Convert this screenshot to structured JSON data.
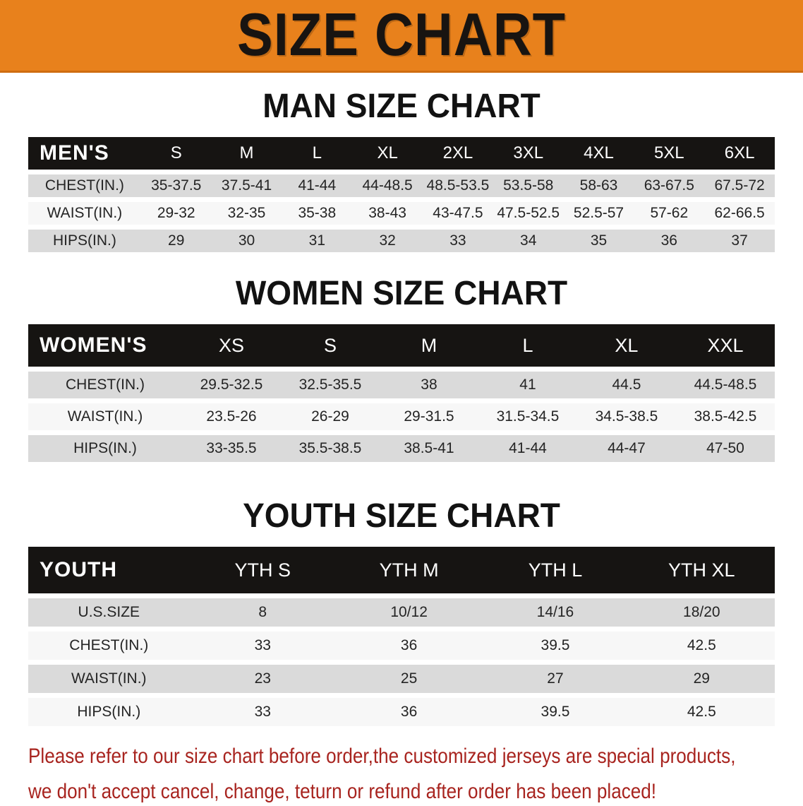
{
  "banner": {
    "title": "SIZE CHART",
    "bg_color": "#e8811c",
    "text_color": "#181411"
  },
  "sections": [
    {
      "key": "men",
      "heading": "MAN SIZE CHART",
      "label": "MEN'S",
      "columns": [
        "S",
        "M",
        "L",
        "XL",
        "2XL",
        "3XL",
        "4XL",
        "5XL",
        "6XL"
      ],
      "rows": [
        {
          "label": "CHEST(IN.)",
          "values": [
            "35-37.5",
            "37.5-41",
            "41-44",
            "44-48.5",
            "48.5-53.5",
            "53.5-58",
            "58-63",
            "63-67.5",
            "67.5-72"
          ]
        },
        {
          "label": "WAIST(IN.)",
          "values": [
            "29-32",
            "32-35",
            "35-38",
            "38-43",
            "43-47.5",
            "47.5-52.5",
            "52.5-57",
            "57-62",
            "62-66.5"
          ]
        },
        {
          "label": "HIPS(IN.)",
          "values": [
            "29",
            "30",
            "31",
            "32",
            "33",
            "34",
            "35",
            "36",
            "37"
          ]
        }
      ]
    },
    {
      "key": "women",
      "heading": "WOMEN SIZE CHART",
      "label": "WOMEN'S",
      "columns": [
        "XS",
        "S",
        "M",
        "L",
        "XL",
        "XXL"
      ],
      "rows": [
        {
          "label": "CHEST(IN.)",
          "values": [
            "29.5-32.5",
            "32.5-35.5",
            "38",
            "41",
            "44.5",
            "44.5-48.5"
          ]
        },
        {
          "label": "WAIST(IN.)",
          "values": [
            "23.5-26",
            "26-29",
            "29-31.5",
            "31.5-34.5",
            "34.5-38.5",
            "38.5-42.5"
          ]
        },
        {
          "label": "HIPS(IN.)",
          "values": [
            "33-35.5",
            "35.5-38.5",
            "38.5-41",
            "41-44",
            "44-47",
            "47-50"
          ]
        }
      ]
    },
    {
      "key": "youth",
      "heading": "YOUTH SIZE CHART",
      "label": "YOUTH",
      "columns": [
        "YTH S",
        "YTH M",
        "YTH L",
        "YTH XL"
      ],
      "rows": [
        {
          "label": "U.S.SIZE",
          "values": [
            "8",
            "10/12",
            "14/16",
            "18/20"
          ]
        },
        {
          "label": "CHEST(IN.)",
          "values": [
            "33",
            "36",
            "39.5",
            "42.5"
          ]
        },
        {
          "label": "WAIST(IN.)",
          "values": [
            "23",
            "25",
            "27",
            "29"
          ]
        },
        {
          "label": "HIPS(IN.)",
          "values": [
            "33",
            "36",
            "39.5",
            "42.5"
          ]
        }
      ]
    }
  ],
  "disclaimer": {
    "line1": "Please refer to our size chart before order,the customized jerseys are special products,",
    "line2": "we don't accept cancel, change, teturn or refund after order has been placed!",
    "color": "#a8241f"
  }
}
